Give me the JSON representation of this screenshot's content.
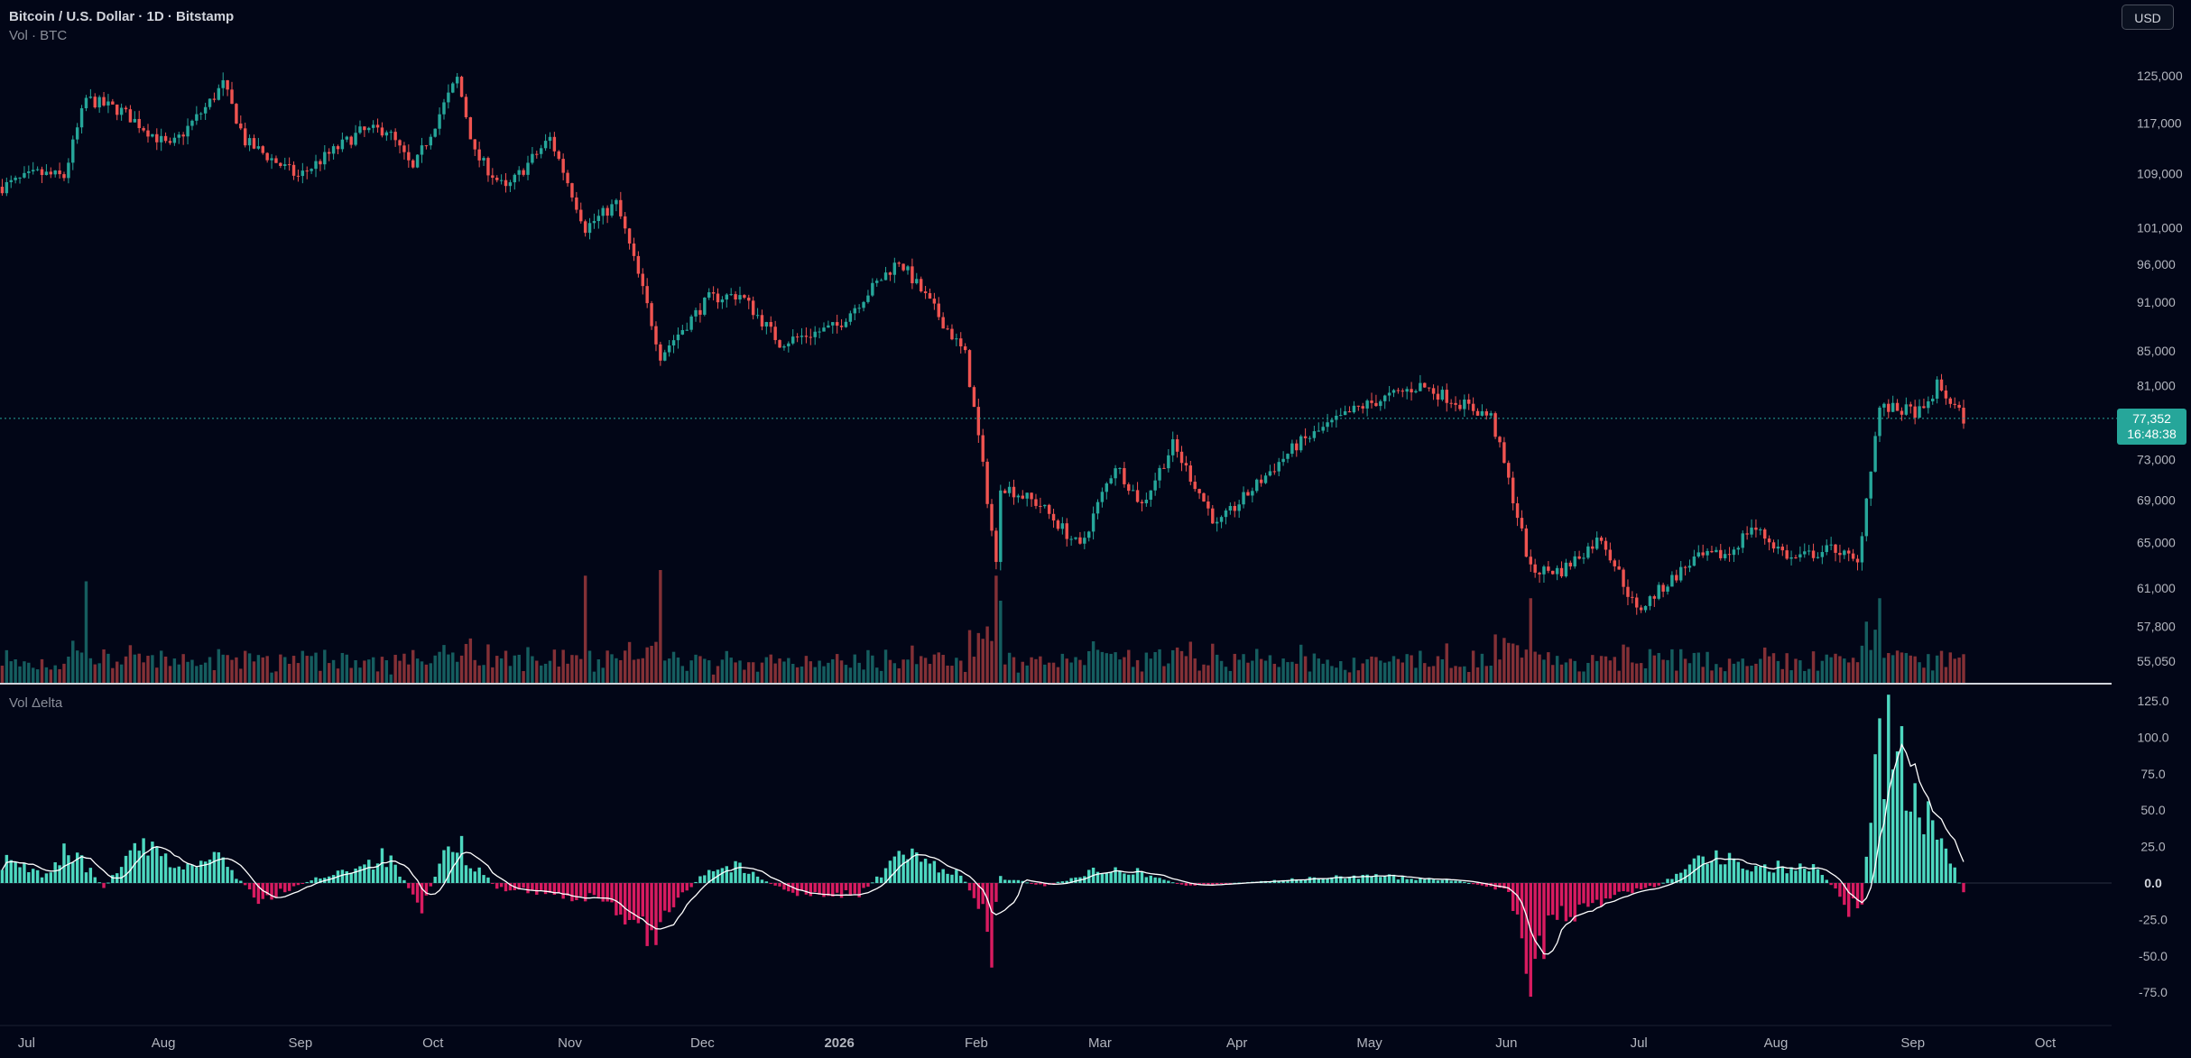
{
  "header": {
    "title": "Bitcoin / U.S. Dollar · 1D · Bitstamp",
    "volume_label": "Vol · BTC",
    "delta_label": "Vol Δelta",
    "currency_button": "USD"
  },
  "price_tag": {
    "price": "77,352",
    "countdown": "16:48:38"
  },
  "colors": {
    "background": "#020617",
    "up": "#26a69a",
    "down": "#ef5350",
    "delta_up": "#4dd8c0",
    "delta_down": "#d81b60",
    "line": "#ffffff"
  },
  "chart_data": [
    {
      "type": "candlestick",
      "title": "Bitcoin / U.S. Dollar · 1D · Bitstamp",
      "y_scale": "log",
      "yticks": [
        55050,
        57800,
        61000,
        65000,
        69000,
        73000,
        77352,
        81000,
        85000,
        91000,
        96000,
        101000,
        109000,
        117000,
        125000
      ],
      "ytick_labels": [
        "55,050",
        "57,800",
        "61,000",
        "65,000",
        "69,000",
        "73,000",
        "77,352",
        "81,000",
        "85,000",
        "91,000",
        "96,000",
        "101,000",
        "109,000",
        "117,000",
        "125,000"
      ],
      "last_price": 77352,
      "x_start": "2025-06-25",
      "x_end": "2026-10-16",
      "xticks": [
        "2025-07-01",
        "2025-08-01",
        "2025-09-01",
        "2025-10-01",
        "2025-11-01",
        "2025-12-01",
        "2026-01-01",
        "2026-02-01",
        "2026-03-01",
        "2026-04-01",
        "2026-05-01",
        "2026-06-01",
        "2026-07-01",
        "2026-08-01",
        "2026-09-01",
        "2026-10-01"
      ],
      "xtick_labels": [
        "Jul",
        "Aug",
        "Sep",
        "Oct",
        "Nov",
        "Dec",
        "2026",
        "Feb",
        "Mar",
        "Apr",
        "May",
        "Jun",
        "Jul",
        "Aug",
        "Sep",
        "Oct"
      ],
      "close_path": [
        [
          "2025-06-25",
          107000
        ],
        [
          "2025-07-03",
          109000
        ],
        [
          "2025-07-09",
          108500
        ],
        [
          "2025-07-14",
          121000
        ],
        [
          "2025-07-22",
          119000
        ],
        [
          "2025-08-02",
          113000
        ],
        [
          "2025-08-10",
          119500
        ],
        [
          "2025-08-14",
          123500
        ],
        [
          "2025-08-19",
          114000
        ],
        [
          "2025-08-31",
          108500
        ],
        [
          "2025-09-14",
          115500
        ],
        [
          "2025-09-20",
          116000
        ],
        [
          "2025-09-26",
          109500
        ],
        [
          "2025-10-06",
          124500
        ],
        [
          "2025-10-10",
          112000
        ],
        [
          "2025-10-17",
          106500
        ],
        [
          "2025-10-27",
          114500
        ],
        [
          "2025-11-04",
          101000
        ],
        [
          "2025-11-11",
          104500
        ],
        [
          "2025-11-21",
          84500
        ],
        [
          "2025-12-02",
          91500
        ],
        [
          "2025-12-09",
          92000
        ],
        [
          "2025-12-18",
          86000
        ],
        [
          "2025-12-31",
          88000
        ],
        [
          "2026-01-14",
          96500
        ],
        [
          "2026-01-19",
          92500
        ],
        [
          "2026-01-29",
          84500
        ],
        [
          "2026-02-05",
          63000
        ],
        [
          "2026-02-06",
          70500
        ],
        [
          "2026-02-15",
          68500
        ],
        [
          "2026-02-24",
          64500
        ],
        [
          "2026-03-04",
          72500
        ],
        [
          "2026-03-10",
          68500
        ],
        [
          "2026-03-17",
          74500
        ],
        [
          "2026-03-27",
          66500
        ],
        [
          "2026-04-14",
          74500
        ],
        [
          "2026-04-28",
          78500
        ],
        [
          "2026-05-12",
          81000
        ],
        [
          "2026-05-28",
          77500
        ],
        [
          "2026-06-06",
          62500
        ],
        [
          "2026-06-13",
          62500
        ],
        [
          "2026-06-22",
          65500
        ],
        [
          "2026-06-30",
          59000
        ],
        [
          "2026-07-13",
          63500
        ],
        [
          "2026-07-21",
          64000
        ],
        [
          "2026-07-26",
          66500
        ],
        [
          "2026-08-04",
          63500
        ],
        [
          "2026-08-14",
          64500
        ],
        [
          "2026-08-19",
          63000
        ],
        [
          "2026-08-24",
          78500
        ],
        [
          "2026-09-03",
          78000
        ],
        [
          "2026-09-06",
          81000
        ],
        [
          "2026-09-12",
          77352
        ]
      ],
      "volume_spikes": [
        [
          "2025-07-14",
          0.9
        ],
        [
          "2025-11-04",
          0.95
        ],
        [
          "2025-11-21",
          1.0
        ],
        [
          "2026-02-05",
          0.95
        ],
        [
          "2026-06-06",
          0.75
        ],
        [
          "2026-08-24",
          0.75
        ]
      ]
    },
    {
      "type": "histogram",
      "title": "Vol Δelta",
      "yticks": [
        -75,
        -50,
        -25,
        0,
        25,
        50,
        75,
        100,
        125
      ],
      "ytick_labels": [
        "-75.0",
        "-50.0",
        "-25.0",
        "0.0",
        "25.0",
        "50.0",
        "75.0",
        "100.0",
        "125.0"
      ],
      "delta_path": [
        [
          "2025-06-25",
          15
        ],
        [
          "2025-07-05",
          5
        ],
        [
          "2025-07-10",
          25
        ],
        [
          "2025-07-18",
          -3
        ],
        [
          "2025-07-26",
          25
        ],
        [
          "2025-08-05",
          10
        ],
        [
          "2025-08-13",
          18
        ],
        [
          "2025-08-22",
          -12
        ],
        [
          "2025-09-05",
          4
        ],
        [
          "2025-09-20",
          18
        ],
        [
          "2025-09-28",
          -15
        ],
        [
          "2025-10-05",
          30
        ],
        [
          "2025-10-15",
          -4
        ],
        [
          "2025-10-25",
          -6
        ],
        [
          "2025-11-10",
          -14
        ],
        [
          "2025-11-19",
          -35
        ],
        [
          "2025-12-01",
          8
        ],
        [
          "2025-12-08",
          12
        ],
        [
          "2025-12-20",
          -7
        ],
        [
          "2026-01-05",
          -8
        ],
        [
          "2026-01-15",
          20
        ],
        [
          "2026-01-28",
          6
        ],
        [
          "2026-02-04",
          -30
        ],
        [
          "2026-02-06",
          4
        ],
        [
          "2026-02-16",
          -2
        ],
        [
          "2026-03-04",
          12
        ],
        [
          "2026-03-20",
          -2
        ],
        [
          "2026-04-10",
          2
        ],
        [
          "2026-04-30",
          5
        ],
        [
          "2026-05-20",
          2
        ],
        [
          "2026-06-01",
          -6
        ],
        [
          "2026-06-06",
          -55
        ],
        [
          "2026-06-12",
          -24
        ],
        [
          "2026-06-25",
          -8
        ],
        [
          "2026-07-05",
          -2
        ],
        [
          "2026-07-15",
          20
        ],
        [
          "2026-07-25",
          12
        ],
        [
          "2026-08-10",
          10
        ],
        [
          "2026-08-17",
          -18
        ],
        [
          "2026-08-20",
          -15
        ],
        [
          "2026-08-23",
          80
        ],
        [
          "2026-08-26",
          100
        ],
        [
          "2026-09-01",
          55
        ],
        [
          "2026-09-08",
          25
        ],
        [
          "2026-09-12",
          -8
        ]
      ],
      "delta_spikes": [
        [
          "2026-02-04",
          -58
        ],
        [
          "2026-06-06",
          -78
        ],
        [
          "2026-08-24",
          113
        ]
      ]
    }
  ]
}
